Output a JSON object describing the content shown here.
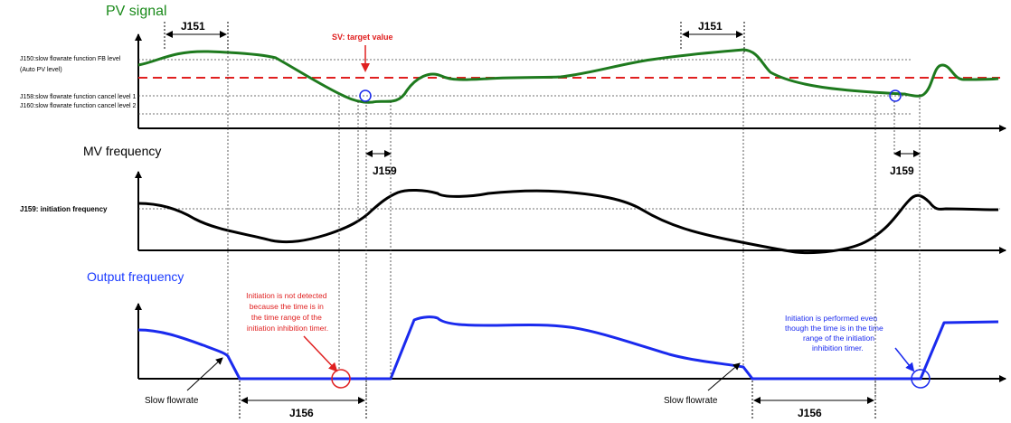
{
  "pv": {
    "title": "PV signal",
    "title_color": "#1a8a1a",
    "fb_level": "J150:slow flowrate function FB level",
    "auto_pv": "(Auto PV level)",
    "cancel1": "J158:slow flowrate function cancel level 1",
    "cancel2": "J160:slow flowrate function cancel level 2",
    "sv_label": "SV: target value",
    "sv_color": "#e02020",
    "timer_left": "J151",
    "timer_right": "J151",
    "curve_color": "#1e7a1e"
  },
  "mv": {
    "title": "MV frequency",
    "init_freq": "J159: initiation frequency",
    "timer_left": "J159",
    "timer_right": "J159"
  },
  "out": {
    "title": "Output frequency",
    "title_color": "#1a3aff",
    "curve_color": "#1a2aee",
    "note_red": [
      "Initiation is not detected",
      "because the time is in",
      "the time range of the",
      "initiation inhibition timer."
    ],
    "note_blue": [
      "Initiation is performed even",
      "though the time is in the time",
      "range of the initiation",
      "inhibition timer."
    ],
    "slow_left": "Slow flowrate",
    "slow_right": "Slow flowrate",
    "timer_left": "J156",
    "timer_right": "J156"
  }
}
